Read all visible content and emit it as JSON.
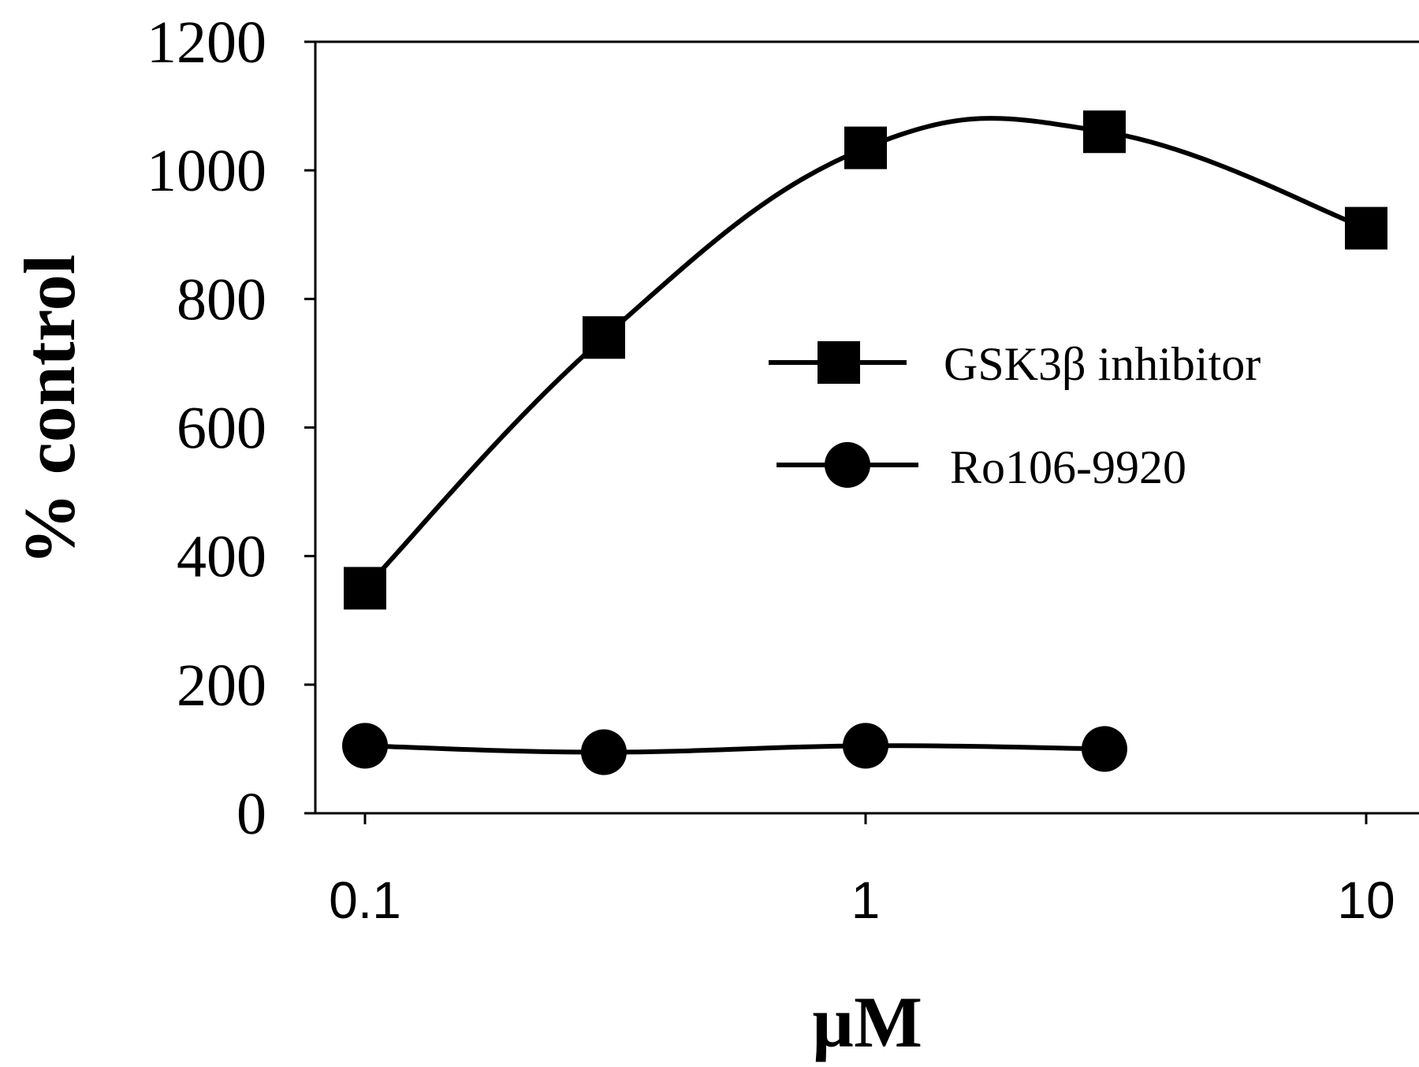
{
  "chart_data": {
    "type": "line",
    "title": "",
    "xlabel": "µM",
    "ylabel": "% control",
    "xscale": "log",
    "xlim": [
      0.1,
      10
    ],
    "ylim": [
      0,
      1200
    ],
    "xticks": [
      0.1,
      1,
      10
    ],
    "xtick_labels": [
      "0.1",
      "1",
      "10"
    ],
    "yticks": [
      0,
      200,
      400,
      600,
      800,
      1000,
      1200
    ],
    "ytick_labels": [
      "0",
      "200",
      "400",
      "600",
      "800",
      "1000",
      "1200"
    ],
    "grid": false,
    "legend_position": "center-right",
    "series": [
      {
        "name": "GSK3β inhibitor",
        "marker": "square",
        "color": "#000000",
        "x": [
          0.1,
          0.3,
          1,
          3,
          10
        ],
        "y": [
          350,
          740,
          1035,
          1060,
          910
        ]
      },
      {
        "name": "Ro106-9920",
        "marker": "circle",
        "color": "#000000",
        "x": [
          0.1,
          0.3,
          1,
          3
        ],
        "y": [
          105,
          95,
          105,
          100
        ]
      }
    ]
  }
}
